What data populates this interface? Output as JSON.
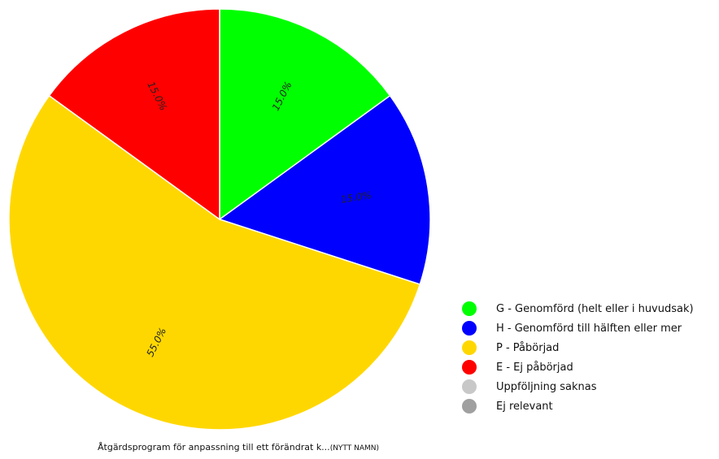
{
  "chart_data": {
    "type": "pie",
    "caption": "Åtgärdsprogram för anpassning till ett förändrat k...",
    "caption_suffix": "(NYTT NAMN)",
    "slices": [
      {
        "name": "G - Genomförd (helt eller i huvudsak)",
        "value": 15.0,
        "label": "15.0%",
        "color": "#00ff00"
      },
      {
        "name": "H - Genomförd till hälften eller mer",
        "value": 15.0,
        "label": "15.0%",
        "color": "#0000ff"
      },
      {
        "name": "P - Påbörjad",
        "value": 55.0,
        "label": "55.0%",
        "color": "#ffd700"
      },
      {
        "name": "E - Ej påbörjad",
        "value": 15.0,
        "label": "15.0%",
        "color": "#ff0000"
      }
    ],
    "legend": [
      {
        "name": "G - Genomförd (helt eller i huvudsak)",
        "color": "#00ff00"
      },
      {
        "name": "H - Genomförd till hälften eller mer",
        "color": "#0000ff"
      },
      {
        "name": "P - Påbörjad",
        "color": "#ffd700"
      },
      {
        "name": "E - Ej påbörjad",
        "color": "#ff0000"
      },
      {
        "name": "Uppföljning saknas",
        "color": "#c8c8c8"
      },
      {
        "name": "Ej relevant",
        "color": "#a0a0a0"
      }
    ],
    "legend_position": "bottom-right"
  }
}
